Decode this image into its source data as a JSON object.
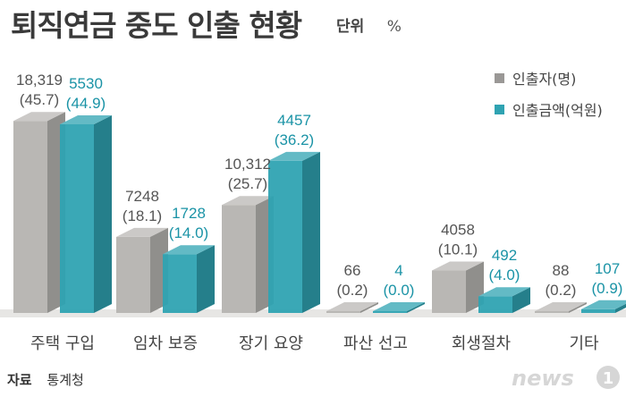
{
  "title": "퇴직연금 중도 인출 현황",
  "unit": {
    "label": "단위",
    "value": "%"
  },
  "source": {
    "label": "자료",
    "value": "통계청"
  },
  "logo_text": "news1",
  "colors": {
    "people": "#b9b7b4",
    "amount": "#2fa3b2",
    "amount_label": "#1a93a6",
    "people_label": "#555555"
  },
  "legend": [
    {
      "label": "인출자(명)",
      "color": "#9a9896"
    },
    {
      "label": "인출금액(억원)",
      "color": "#2fa3b2"
    }
  ],
  "chart_data": {
    "type": "bar",
    "categories": [
      "주택 구입",
      "임차 보증",
      "장기 요양",
      "파산 선고",
      "회생절차",
      "기타"
    ],
    "series": [
      {
        "name": "인출자(명)",
        "values": [
          18319,
          7248,
          10312,
          66,
          4058,
          88
        ],
        "labels": [
          "18,319",
          "7248",
          "10,312",
          "66",
          "4058",
          "88"
        ],
        "pct_labels": [
          "(45.7)",
          "(18.1)",
          "(25.7)",
          "(0.2)",
          "(10.1)",
          "(0.2)"
        ],
        "shares": [
          45.7,
          18.1,
          25.7,
          0.2,
          10.1,
          0.2
        ]
      },
      {
        "name": "인출금액(억원)",
        "values": [
          5530,
          1728,
          4457,
          4,
          492,
          107
        ],
        "labels": [
          "5530",
          "1728",
          "4457",
          "4",
          "492",
          "107"
        ],
        "pct_labels": [
          "(44.9)",
          "(14.0)",
          "(36.2)",
          "(0.0)",
          "(4.0)",
          "(0.9)"
        ],
        "shares": [
          44.9,
          14.0,
          36.2,
          0.0,
          4.0,
          0.9
        ]
      }
    ]
  }
}
